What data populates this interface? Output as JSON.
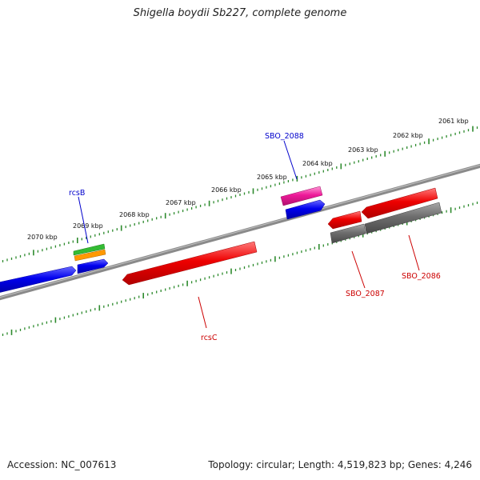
{
  "title": "Shigella boydii Sb227, complete genome",
  "footer": {
    "accession": "Accession: NC_007613",
    "topology": "Topology: circular; Length: 4,519,823 bp; Genes: 4,246"
  },
  "colors": {
    "backbone": "#7a7a7a",
    "tick": "#2e8b2e",
    "forward_gene": "#0000ee",
    "reverse_gene": "#ee0000",
    "pseudo_gene": "#6e6e6e",
    "label_forward": "#0000cc",
    "label_reverse": "#cc0000",
    "feature_green": "#33bb33",
    "feature_orange": "#ff9900",
    "feature_magenta": "#ee1a99"
  },
  "scale_labels": [
    {
      "id": "2061",
      "text": "2061 kbp"
    },
    {
      "id": "2062",
      "text": "2062 kbp"
    },
    {
      "id": "2063",
      "text": "2063 kbp"
    },
    {
      "id": "2064",
      "text": "2064 kbp"
    },
    {
      "id": "2065",
      "text": "2065 kbp"
    },
    {
      "id": "2066",
      "text": "2066 kbp"
    },
    {
      "id": "2067",
      "text": "2067 kbp"
    },
    {
      "id": "2068",
      "text": "2068 kbp"
    },
    {
      "id": "2069",
      "text": "2069 kbp"
    },
    {
      "id": "2070",
      "text": "2070 kbp"
    }
  ],
  "gene_labels": [
    {
      "id": "rcsB",
      "text": "rcsB",
      "strand": "forward"
    },
    {
      "id": "SBO_2088",
      "text": "SBO_2088",
      "strand": "forward"
    },
    {
      "id": "rcsC",
      "text": "rcsC",
      "strand": "reverse"
    },
    {
      "id": "SBO_2087",
      "text": "SBO_2087",
      "strand": "reverse"
    },
    {
      "id": "SBO_2086",
      "text": "SBO_2086",
      "strand": "reverse"
    }
  ]
}
